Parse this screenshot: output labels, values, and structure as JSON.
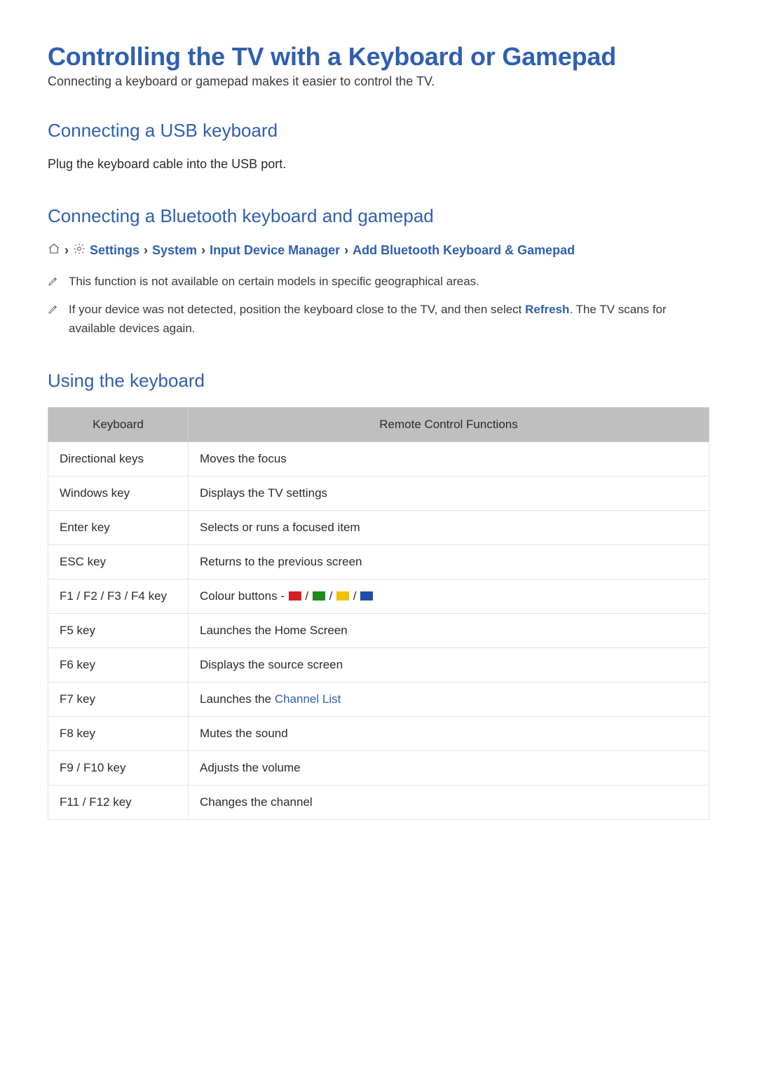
{
  "colors": {
    "accent": "#2f5fb0",
    "body": "#2b2b2b",
    "muted": "#3a3a3a",
    "tableHeaderBg": "#bfbfbf",
    "tableBorder": "#e3e3e3",
    "icon": "#6b6b6b",
    "swatchRed": "#d62020",
    "swatchGreen": "#1e8a1e",
    "swatchYellow": "#f2c200",
    "swatchBlue": "#1e4fa8"
  },
  "title": "Controlling the TV with a Keyboard or Gamepad",
  "subtitle": "Connecting a keyboard or gamepad makes it easier to control the TV.",
  "sections": {
    "usb": {
      "heading": "Connecting a USB keyboard",
      "text": "Plug the keyboard cable into the USB port."
    },
    "bt": {
      "heading": "Connecting a Bluetooth keyboard and gamepad",
      "breadcrumb": [
        "Settings",
        "System",
        "Input Device Manager",
        "Add Bluetooth Keyboard & Gamepad"
      ],
      "notes": [
        {
          "text": "This function is not available on certain models in specific geographical areas."
        },
        {
          "pre": "If your device was not detected, position the keyboard close to the TV, and then select ",
          "link": "Refresh",
          "post": ". The TV scans for available devices again."
        }
      ]
    },
    "using": {
      "heading": "Using the keyboard",
      "table": {
        "headers": [
          "Keyboard",
          "Remote Control Functions"
        ],
        "rows": [
          {
            "key": "Directional keys",
            "fn": "Moves the focus"
          },
          {
            "key": "Windows key",
            "fn": "Displays the TV settings"
          },
          {
            "key": "Enter key",
            "fn": "Selects or runs a focused item"
          },
          {
            "key": "ESC key",
            "fn": "Returns to the previous screen"
          },
          {
            "key": "F1 / F2 / F3 / F4 key",
            "fn_prefix": "Colour buttons - ",
            "swatches": true
          },
          {
            "key": "F5 key",
            "fn": "Launches the Home Screen"
          },
          {
            "key": "F6 key",
            "fn": "Displays the source screen"
          },
          {
            "key": "F7 key",
            "fn_prefix": "Launches the ",
            "link": "Channel List"
          },
          {
            "key": "F8 key",
            "fn": "Mutes the sound"
          },
          {
            "key": "F9 / F10 key",
            "fn": "Adjusts the volume"
          },
          {
            "key": "F11 / F12 key",
            "fn": "Changes the channel"
          }
        ]
      }
    }
  }
}
